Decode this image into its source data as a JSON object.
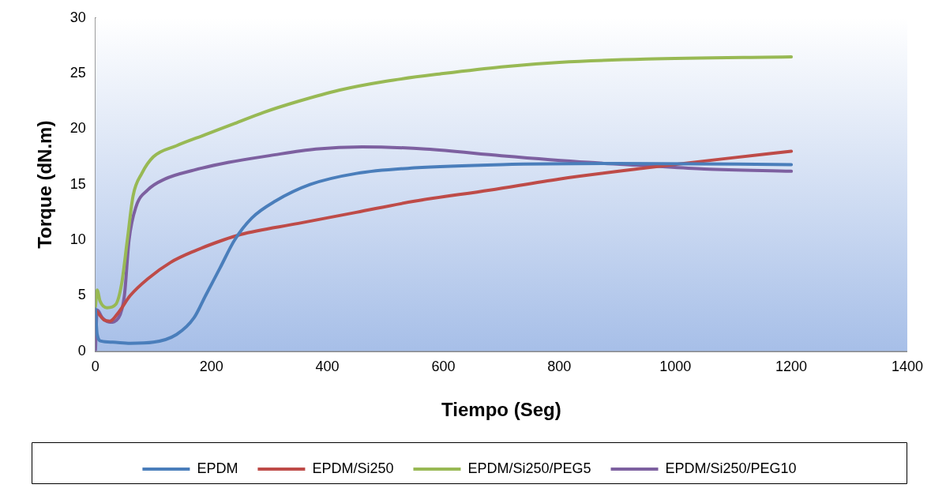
{
  "chart_data": {
    "type": "line",
    "xlabel": "Tiempo (Seg)",
    "ylabel": "Torque (dN.m)",
    "xlim": [
      0,
      1400
    ],
    "xticks": [
      0,
      200,
      400,
      600,
      800,
      1000,
      1200,
      1400
    ],
    "ylim": [
      0,
      30
    ],
    "yticks": [
      0,
      5,
      10,
      15,
      20,
      25,
      30
    ],
    "grid": false,
    "legend": "bottom",
    "marker": "none",
    "series": [
      {
        "name": "EPDM",
        "color": "#4a7ebb",
        "x": [
          0,
          3,
          10,
          30,
          60,
          100,
          140,
          170,
          190,
          215,
          240,
          270,
          310,
          370,
          450,
          550,
          700,
          900,
          1200
        ],
        "values": [
          3.8,
          1.5,
          0.9,
          0.8,
          0.7,
          0.8,
          1.5,
          3,
          5,
          7.5,
          10,
          12,
          13.5,
          15,
          16,
          16.5,
          16.8,
          16.9,
          16.8
        ]
      },
      {
        "name": "EPDM/Si250",
        "color": "#be4b48",
        "x": [
          0,
          5,
          15,
          25,
          40,
          60,
          90,
          130,
          170,
          220,
          250,
          350,
          450,
          550,
          680,
          800,
          950,
          1080,
          1200
        ],
        "values": [
          3.7,
          3.4,
          2.8,
          2.7,
          3.5,
          5,
          6.5,
          8,
          9,
          10,
          10.5,
          11.5,
          12.5,
          13.5,
          14.5,
          15.5,
          16.5,
          17.3,
          18
        ]
      },
      {
        "name": "EPDM/Si250/PEG5",
        "color": "#98b954",
        "x": [
          0,
          3,
          8,
          20,
          35,
          45,
          55,
          65,
          80,
          100,
          140,
          190,
          240,
          290,
          350,
          420,
          500,
          600,
          700,
          800,
          950,
          1200
        ],
        "values": [
          4,
          5.5,
          4.5,
          3.9,
          4.2,
          6,
          10,
          14,
          16,
          17.5,
          18.5,
          19.5,
          20.5,
          21.5,
          22.5,
          23.5,
          24.3,
          25,
          25.6,
          26,
          26.3,
          26.5
        ]
      },
      {
        "name": "EPDM/Si250/PEG10",
        "color": "#7d60a0",
        "x": [
          0,
          3,
          12,
          25,
          40,
          50,
          58,
          70,
          90,
          120,
          170,
          230,
          300,
          380,
          460,
          570,
          700,
          850,
          950,
          1050,
          1200
        ],
        "values": [
          0,
          3.7,
          3,
          2.6,
          3,
          5,
          10,
          13,
          14.5,
          15.5,
          16.3,
          17,
          17.6,
          18.2,
          18.4,
          18.2,
          17.6,
          17,
          16.7,
          16.4,
          16.2
        ]
      }
    ]
  }
}
